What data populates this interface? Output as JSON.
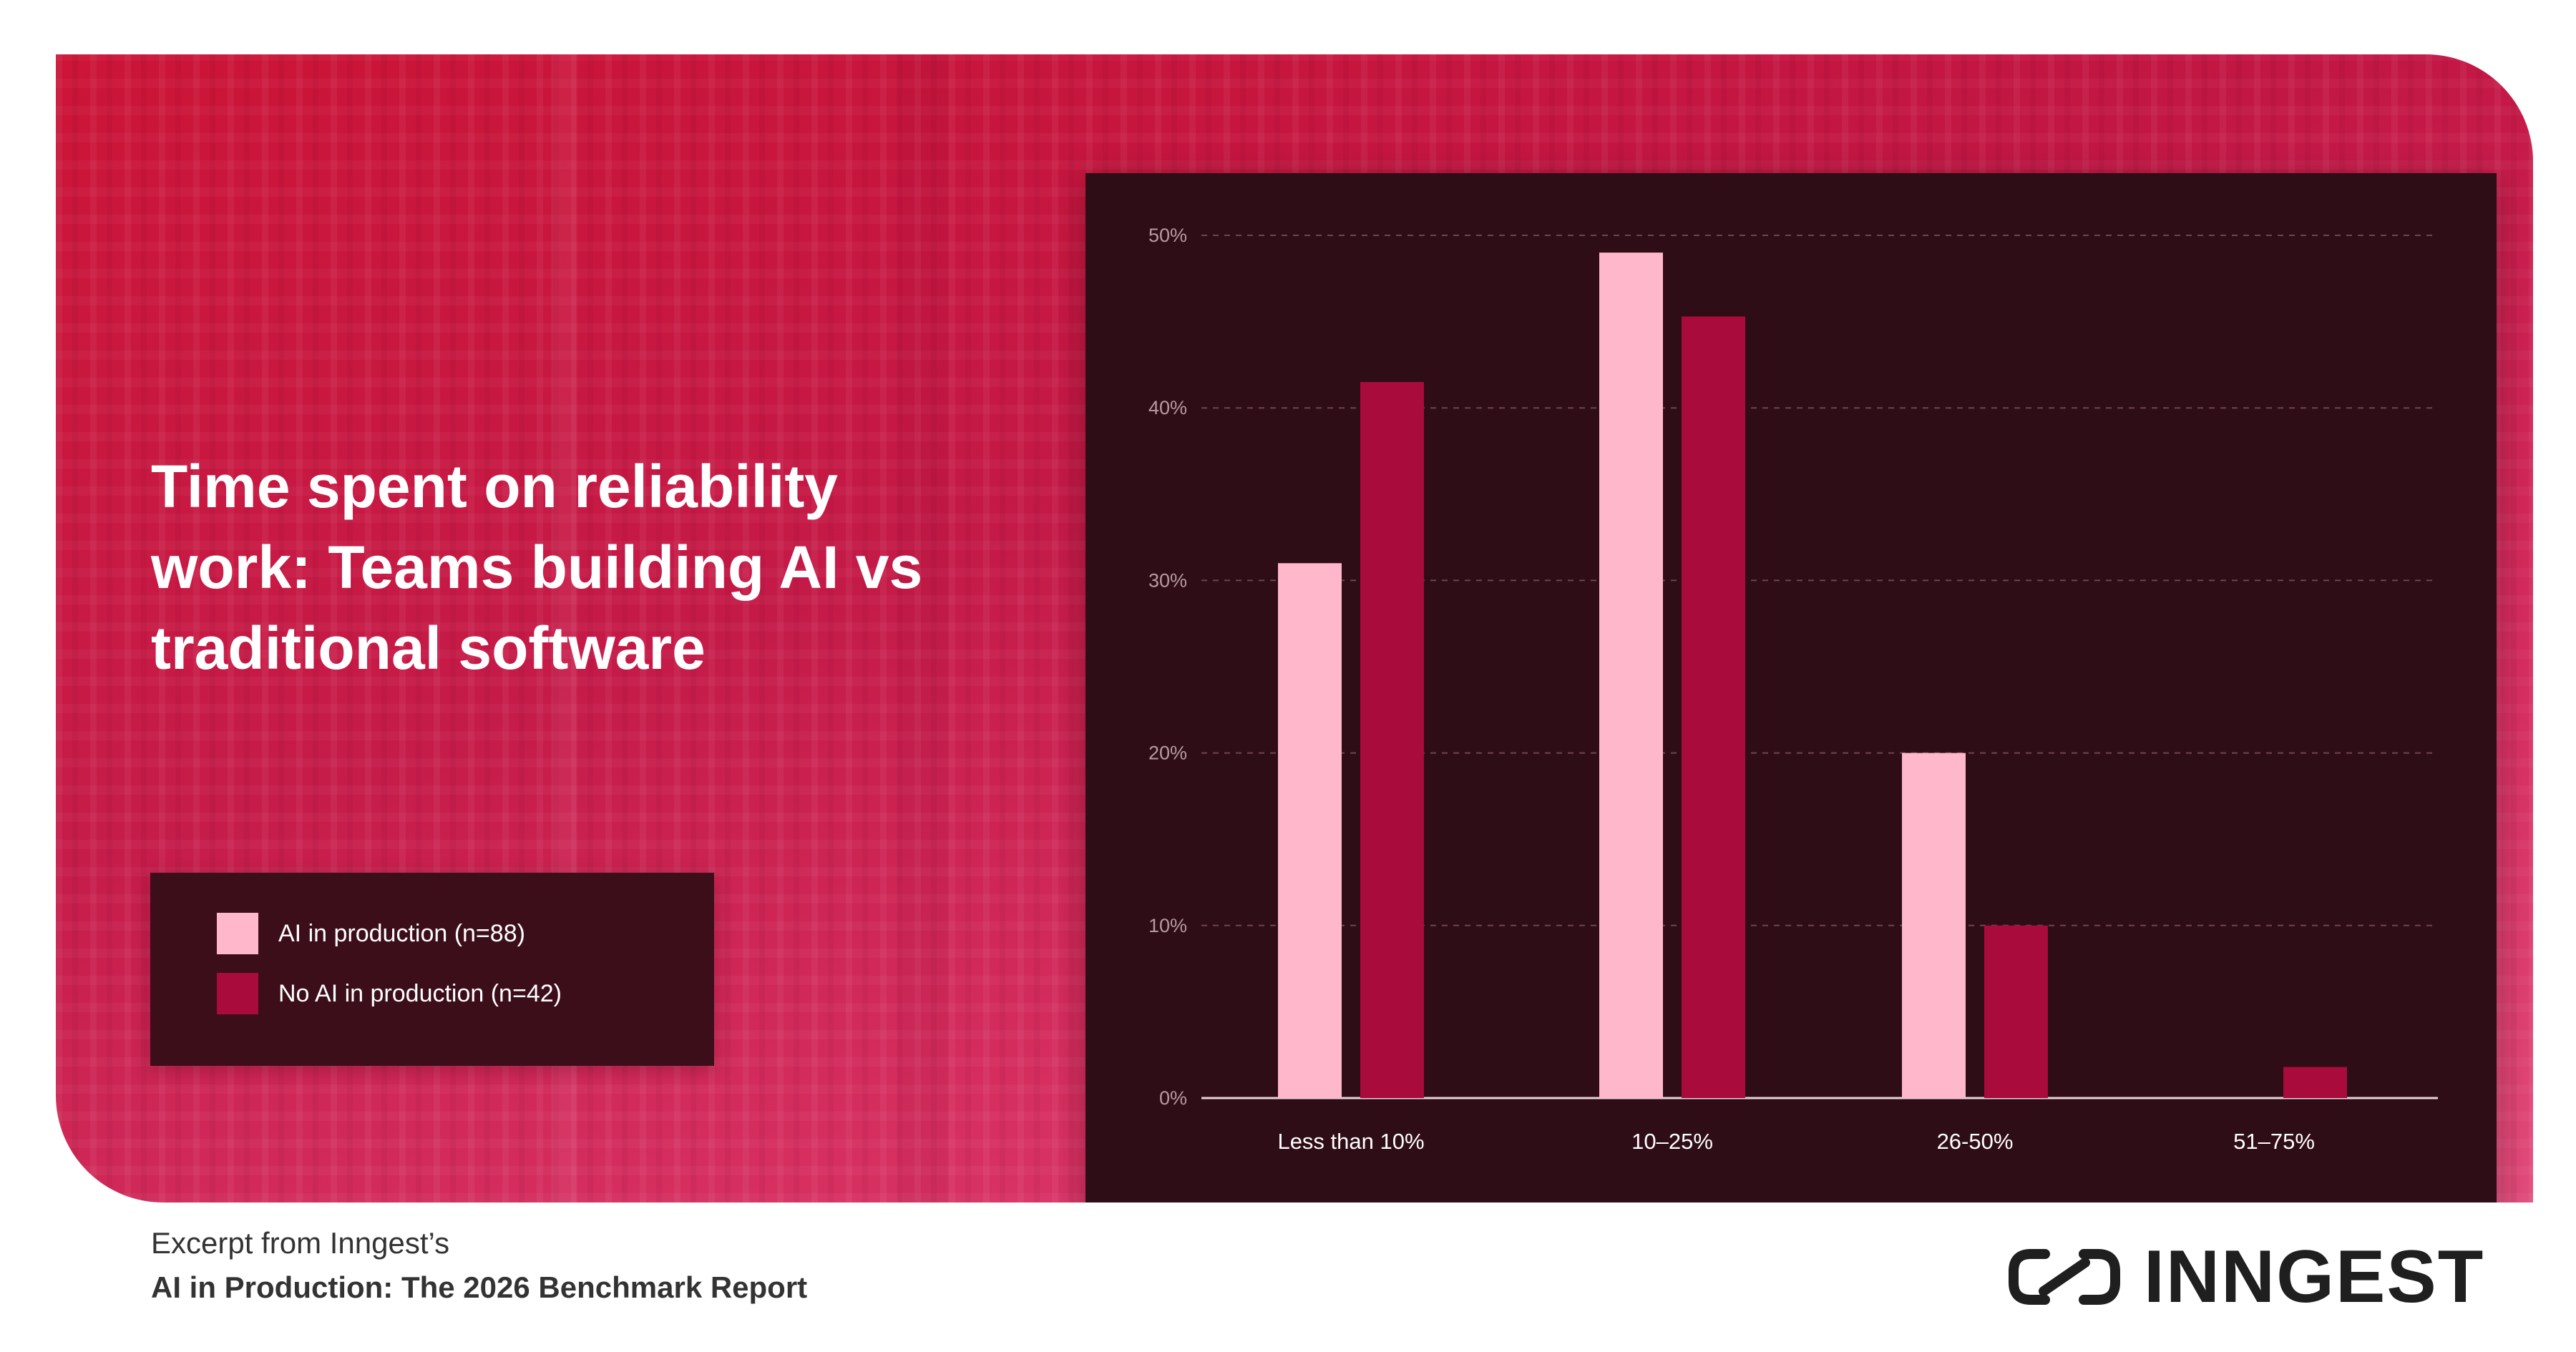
{
  "title": "Time spent on reliability work: Teams building AI vs traditional software",
  "legend": {
    "items": [
      {
        "label": "AI in production (n=88)",
        "color": "#ffb8cb"
      },
      {
        "label": "No AI in production (n=42)",
        "color": "#a80b3c"
      }
    ]
  },
  "footer": {
    "line1": "Excerpt from Inngest’s",
    "line2": "AI in Production: The 2026 Benchmark Report"
  },
  "brand": {
    "name": "INNGEST",
    "icon": "inngest-logo-icon"
  },
  "colors": {
    "hero_background": "#c8173f",
    "chart_background": "#2e0d16",
    "series_ai": "#ffb8cb",
    "series_no_ai": "#a80b3c",
    "text_footer": "#333333"
  },
  "chart_data": {
    "type": "bar",
    "categories": [
      "Less than 10%",
      "10–25%",
      "26-50%",
      "51–75%"
    ],
    "series": [
      {
        "name": "AI in production (n=88)",
        "values": [
          31,
          49,
          20,
          0
        ]
      },
      {
        "name": "No AI in production (n=42)",
        "values": [
          41.5,
          45.3,
          10,
          1.8
        ]
      }
    ],
    "yticks": [
      "0%",
      "10%",
      "20%",
      "30%",
      "40%",
      "50%"
    ],
    "ylim": [
      0,
      50
    ],
    "grid": true,
    "legend_position": "left",
    "xlabel": "",
    "ylabel": ""
  }
}
